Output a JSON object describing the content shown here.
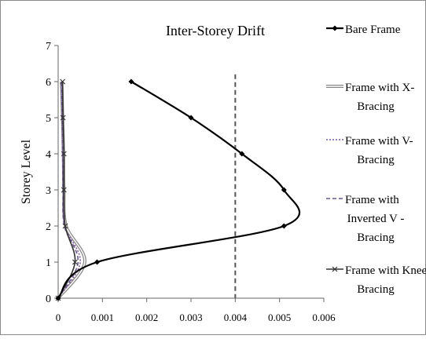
{
  "chart_data": {
    "type": "line",
    "title": "Inter-Storey Drift",
    "xlabel": "",
    "ylabel": "Storey Level",
    "xlim": [
      0,
      0.006
    ],
    "ylim": [
      0,
      7
    ],
    "x_ticks": [
      "0",
      "0.001",
      "0.002",
      "0.003",
      "0.004",
      "0.005",
      "0.006"
    ],
    "y_ticks": [
      "0",
      "1",
      "2",
      "3",
      "4",
      "5",
      "6",
      "7"
    ],
    "grid": false,
    "legend_position": "right",
    "series": [
      {
        "name": "Bare Frame",
        "color": "#000000",
        "marker": "diamond",
        "line": "solid",
        "x": [
          0,
          0.00088,
          0.0051,
          0.0051,
          0.00415,
          0.003,
          0.00165
        ],
        "y": [
          0,
          1,
          2,
          3,
          4,
          5,
          6
        ]
      },
      {
        "name": "Frame with X-Bracing",
        "color": "#888888",
        "marker": "none",
        "line": "double",
        "x": [
          0,
          0.0006,
          0.00018,
          0.00013,
          0.00012,
          0.0001,
          8e-05
        ],
        "y": [
          0,
          1,
          2,
          3,
          4,
          5,
          6
        ]
      },
      {
        "name": "Frame with V-Bracing",
        "color": "#7e5a9b",
        "marker": "none",
        "line": "dotted",
        "x": [
          0,
          0.0005,
          0.00015,
          0.00012,
          0.0001,
          9e-05,
          7e-05
        ],
        "y": [
          0,
          1,
          2,
          3,
          4,
          5,
          6
        ]
      },
      {
        "name": "Frame with Inverted V -Bracing",
        "color": "#6a5a8a",
        "marker": "none",
        "line": "dashed",
        "x": [
          0,
          0.00045,
          0.00014,
          0.00011,
          0.0001,
          9e-05,
          7e-05
        ],
        "y": [
          0,
          1,
          2,
          3,
          4,
          5,
          6
        ]
      },
      {
        "name": "Frame with Knee Bracing",
        "color": "#333333",
        "marker": "x",
        "line": "solid",
        "x": [
          0,
          0.00038,
          0.00016,
          0.00013,
          0.00013,
          0.00011,
          0.0001
        ],
        "y": [
          0,
          1,
          2,
          3,
          4,
          5,
          6
        ]
      }
    ],
    "reference_line": {
      "x": 0.004,
      "style": "dashed",
      "color": "#555555"
    },
    "legend_lines": [
      [
        "Bare Frame"
      ],
      [
        "Frame with X-",
        "Bracing"
      ],
      [
        "Frame with V-",
        "Bracing"
      ],
      [
        "Frame with",
        "Inverted V -",
        "Bracing"
      ],
      [
        "Frame with Knee",
        "Bracing"
      ]
    ]
  }
}
